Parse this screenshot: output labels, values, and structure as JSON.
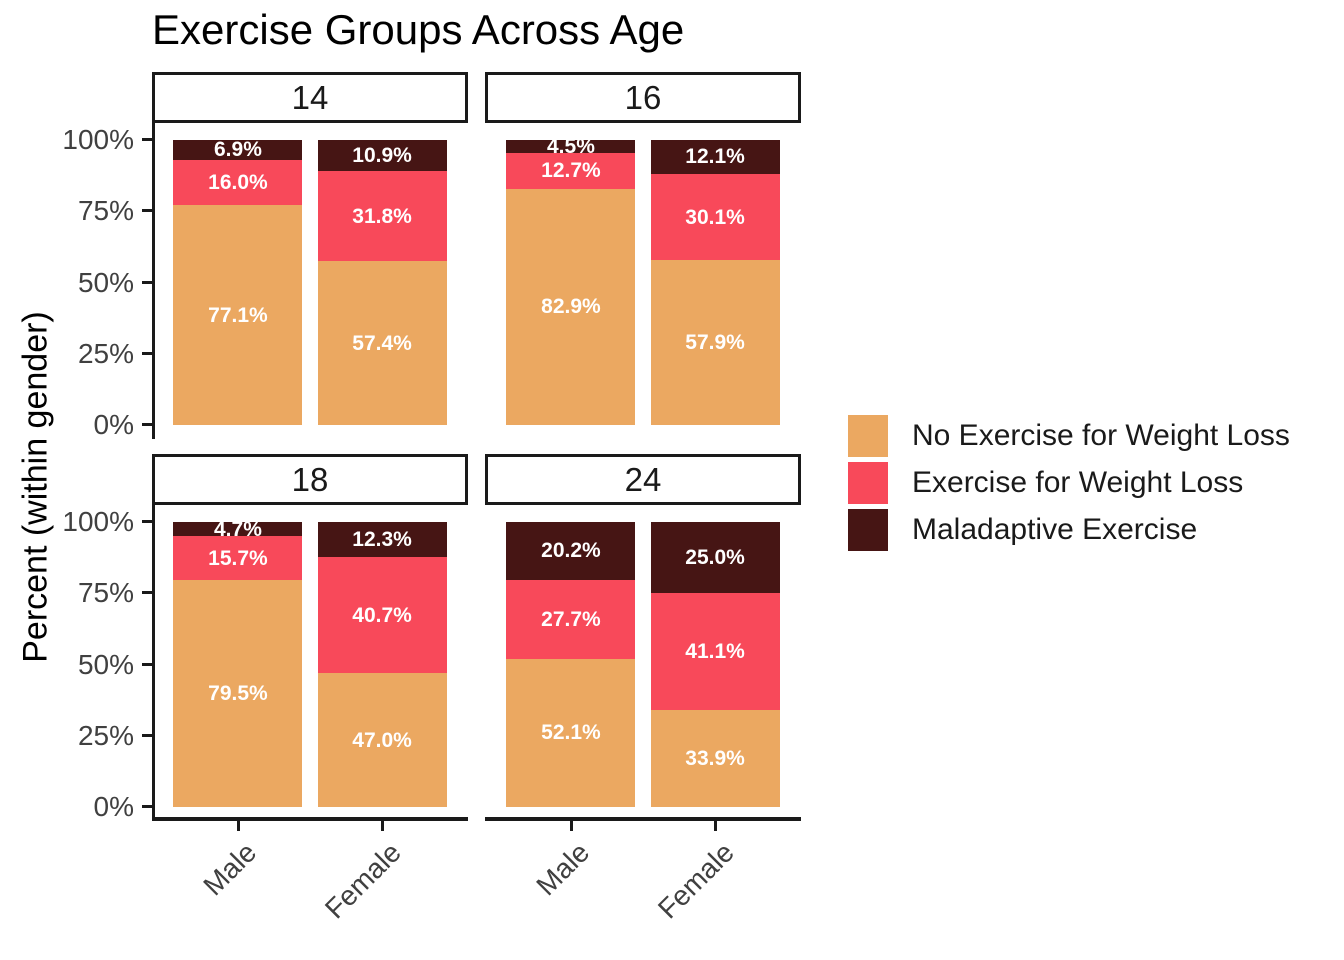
{
  "title": "Exercise Groups Across Age",
  "y_axis": {
    "title": "Percent (within gender)",
    "tick_labels": [
      "100%",
      "75%",
      "50%",
      "25%",
      "0%"
    ]
  },
  "x_axis": {
    "categories": [
      "Male",
      "Female"
    ]
  },
  "legend": {
    "position": "right",
    "items": [
      {
        "label": "No Exercise for Weight Loss",
        "color": "#EBA861"
      },
      {
        "label": "Exercise for Weight Loss",
        "color": "#F8495A"
      },
      {
        "label": "Maladaptive Exercise",
        "color": "#461514"
      }
    ]
  },
  "chart_data": {
    "type": "bar",
    "stacked": true,
    "units": "percent",
    "title": "Exercise Groups Across Age",
    "ylabel": "Percent (within gender)",
    "ylim": [
      0,
      100
    ],
    "yticks": [
      0,
      25,
      50,
      75,
      100
    ],
    "grid": false,
    "legend_position": "right",
    "facet_labels": [
      "14",
      "16",
      "18",
      "24"
    ],
    "categories": [
      "Male",
      "Female"
    ],
    "series_order": [
      "No Exercise for Weight Loss",
      "Exercise for Weight Loss",
      "Maladaptive Exercise"
    ],
    "facets": [
      {
        "label": "14",
        "bars": [
          {
            "category": "Male",
            "segments": [
              {
                "series": "No Exercise for Weight Loss",
                "value": 77.1,
                "label": "77.1%"
              },
              {
                "series": "Exercise for Weight Loss",
                "value": 16.0,
                "label": "16.0%"
              },
              {
                "series": "Maladaptive Exercise",
                "value": 6.9,
                "label": "6.9%"
              }
            ]
          },
          {
            "category": "Female",
            "segments": [
              {
                "series": "No Exercise for Weight Loss",
                "value": 57.4,
                "label": "57.4%"
              },
              {
                "series": "Exercise for Weight Loss",
                "value": 31.8,
                "label": "31.8%"
              },
              {
                "series": "Maladaptive Exercise",
                "value": 10.9,
                "label": "10.9%"
              }
            ]
          }
        ]
      },
      {
        "label": "16",
        "bars": [
          {
            "category": "Male",
            "segments": [
              {
                "series": "No Exercise for Weight Loss",
                "value": 82.9,
                "label": "82.9%"
              },
              {
                "series": "Exercise for Weight Loss",
                "value": 12.7,
                "label": "12.7%"
              },
              {
                "series": "Maladaptive Exercise",
                "value": 4.5,
                "label": "4.5%"
              }
            ]
          },
          {
            "category": "Female",
            "segments": [
              {
                "series": "No Exercise for Weight Loss",
                "value": 57.9,
                "label": "57.9%"
              },
              {
                "series": "Exercise for Weight Loss",
                "value": 30.1,
                "label": "30.1%"
              },
              {
                "series": "Maladaptive Exercise",
                "value": 12.1,
                "label": "12.1%"
              }
            ]
          }
        ]
      },
      {
        "label": "18",
        "bars": [
          {
            "category": "Male",
            "segments": [
              {
                "series": "No Exercise for Weight Loss",
                "value": 79.5,
                "label": "79.5%"
              },
              {
                "series": "Exercise for Weight Loss",
                "value": 15.7,
                "label": "15.7%"
              },
              {
                "series": "Maladaptive Exercise",
                "value": 4.7,
                "label": "4.7%"
              }
            ]
          },
          {
            "category": "Female",
            "segments": [
              {
                "series": "No Exercise for Weight Loss",
                "value": 47.0,
                "label": "47.0%"
              },
              {
                "series": "Exercise for Weight Loss",
                "value": 40.7,
                "label": "40.7%"
              },
              {
                "series": "Maladaptive Exercise",
                "value": 12.3,
                "label": "12.3%"
              }
            ]
          }
        ]
      },
      {
        "label": "24",
        "bars": [
          {
            "category": "Male",
            "segments": [
              {
                "series": "No Exercise for Weight Loss",
                "value": 52.1,
                "label": "52.1%"
              },
              {
                "series": "Exercise for Weight Loss",
                "value": 27.7,
                "label": "27.7%"
              },
              {
                "series": "Maladaptive Exercise",
                "value": 20.2,
                "label": "20.2%"
              }
            ]
          },
          {
            "category": "Female",
            "segments": [
              {
                "series": "No Exercise for Weight Loss",
                "value": 33.9,
                "label": "33.9%"
              },
              {
                "series": "Exercise for Weight Loss",
                "value": 41.1,
                "label": "41.1%"
              },
              {
                "series": "Maladaptive Exercise",
                "value": 25.0,
                "label": "25.0%"
              }
            ]
          }
        ]
      }
    ]
  }
}
